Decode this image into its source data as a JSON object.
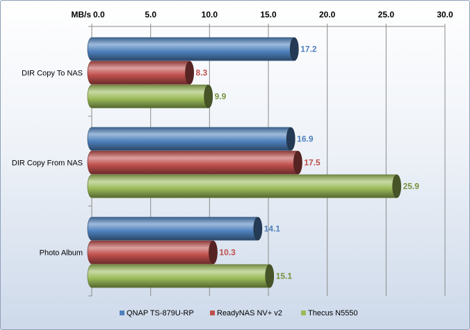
{
  "chart_data": {
    "type": "bar",
    "orientation": "horizontal",
    "unit_label": "MB/s",
    "categories": [
      "DIR Copy To  NAS",
      "DIR Copy From NAS",
      "Photo Album"
    ],
    "series": [
      {
        "name": "QNAP TS-879U-RP",
        "values": [
          17.2,
          16.9,
          14.1
        ],
        "color": "#4f81bd",
        "label_color": "#4f81bd"
      },
      {
        "name": "ReadyNAS NV+ v2",
        "values": [
          8.3,
          17.5,
          10.3
        ],
        "color": "#c0504d",
        "label_color": "#c0504d"
      },
      {
        "name": "Thecus N5550",
        "values": [
          9.9,
          25.9,
          15.1
        ],
        "color": "#9bbb59",
        "label_color": "#76923c"
      }
    ],
    "value_labels": [
      [
        "17.2",
        "16.9",
        "14.1"
      ],
      [
        "8.3",
        "17.5",
        "10.3"
      ],
      [
        "9.9",
        "25.9",
        "15.1"
      ]
    ],
    "xlim": [
      0,
      30
    ],
    "xticks": [
      "0.0",
      "5.0",
      "10.0",
      "15.0",
      "20.0",
      "25.0",
      "30.0"
    ],
    "grid": true,
    "axis_position": "top",
    "legend_position": "bottom"
  }
}
